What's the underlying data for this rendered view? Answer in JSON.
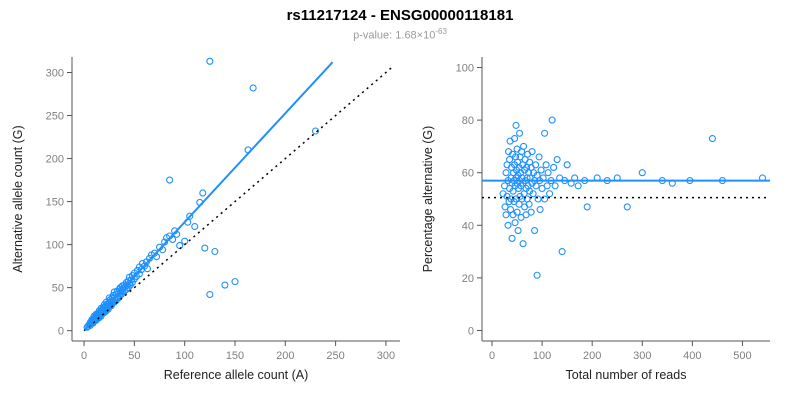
{
  "header": {
    "title": "rs11217124 - ENSG00000118181",
    "p_label": "p-value: 1.68×10",
    "p_exponent": "-63"
  },
  "colors": {
    "point": "#1E90FF",
    "fit_line": "#1E90FF",
    "reference_line": "#000000",
    "axis": "#555555",
    "tick_label": "#808080",
    "axis_label": "#222222",
    "subtitle": "#9a9a9a"
  },
  "chart_data": [
    {
      "type": "scatter",
      "xlabel": "Reference allele count (A)",
      "ylabel": "Alternative allele count (G)",
      "xlim": [
        -12,
        314
      ],
      "ylim": [
        -12,
        318
      ],
      "xticks": [
        0,
        50,
        100,
        150,
        200,
        250,
        300
      ],
      "yticks": [
        0,
        50,
        100,
        150,
        200,
        250,
        300
      ],
      "grid": false,
      "legend": "none",
      "point_color": "#1E90FF",
      "lines": [
        {
          "name": "identity-line",
          "style": "dotted",
          "color": "#000000",
          "width": 1.5,
          "x1": 0,
          "y1": 0,
          "x2": 308,
          "y2": 308
        },
        {
          "name": "fit-line",
          "style": "solid",
          "color": "#1E90FF",
          "width": 2,
          "x1": 1,
          "y1": 1,
          "x2": 247,
          "y2": 312
        }
      ],
      "points": [
        [
          3,
          4
        ],
        [
          4,
          5
        ],
        [
          5,
          7
        ],
        [
          6,
          6
        ],
        [
          6,
          9
        ],
        [
          7,
          8
        ],
        [
          7,
          11
        ],
        [
          8,
          10
        ],
        [
          8,
          13
        ],
        [
          9,
          9
        ],
        [
          9,
          12
        ],
        [
          10,
          11
        ],
        [
          10,
          14
        ],
        [
          10,
          17
        ],
        [
          11,
          13
        ],
        [
          11,
          16
        ],
        [
          12,
          12
        ],
        [
          12,
          15
        ],
        [
          12,
          19
        ],
        [
          13,
          14
        ],
        [
          13,
          18
        ],
        [
          14,
          16
        ],
        [
          14,
          20
        ],
        [
          15,
          15
        ],
        [
          15,
          19
        ],
        [
          15,
          23
        ],
        [
          16,
          18
        ],
        [
          16,
          22
        ],
        [
          17,
          17
        ],
        [
          17,
          21
        ],
        [
          17,
          26
        ],
        [
          18,
          20
        ],
        [
          18,
          24
        ],
        [
          19,
          22
        ],
        [
          19,
          27
        ],
        [
          20,
          21
        ],
        [
          20,
          25
        ],
        [
          20,
          30
        ],
        [
          21,
          24
        ],
        [
          21,
          28
        ],
        [
          22,
          23
        ],
        [
          22,
          27
        ],
        [
          22,
          33
        ],
        [
          23,
          26
        ],
        [
          23,
          31
        ],
        [
          24,
          25
        ],
        [
          24,
          30
        ],
        [
          25,
          28
        ],
        [
          25,
          33
        ],
        [
          25,
          38
        ],
        [
          26,
          30
        ],
        [
          26,
          36
        ],
        [
          27,
          29
        ],
        [
          27,
          34
        ],
        [
          28,
          32
        ],
        [
          28,
          38
        ],
        [
          29,
          34
        ],
        [
          29,
          41
        ],
        [
          30,
          33
        ],
        [
          30,
          38
        ],
        [
          30,
          45
        ],
        [
          31,
          36
        ],
        [
          32,
          35
        ],
        [
          32,
          42
        ],
        [
          33,
          39
        ],
        [
          33,
          46
        ],
        [
          34,
          38
        ],
        [
          34,
          44
        ],
        [
          35,
          41
        ],
        [
          35,
          48
        ],
        [
          36,
          43
        ],
        [
          36,
          50
        ],
        [
          37,
          42
        ],
        [
          37,
          47
        ],
        [
          38,
          45
        ],
        [
          38,
          52
        ],
        [
          39,
          49
        ],
        [
          40,
          46
        ],
        [
          40,
          53
        ],
        [
          41,
          51
        ],
        [
          42,
          48
        ],
        [
          42,
          56
        ],
        [
          43,
          53
        ],
        [
          44,
          50
        ],
        [
          44,
          58
        ],
        [
          45,
          55
        ],
        [
          45,
          62
        ],
        [
          46,
          53
        ],
        [
          47,
          59
        ],
        [
          48,
          56
        ],
        [
          48,
          64
        ],
        [
          50,
          60
        ],
        [
          50,
          67
        ],
        [
          52,
          63
        ],
        [
          53,
          70
        ],
        [
          55,
          66
        ],
        [
          55,
          74
        ],
        [
          57,
          71
        ],
        [
          58,
          78
        ],
        [
          60,
          75
        ],
        [
          62,
          80
        ],
        [
          63,
          72
        ],
        [
          65,
          84
        ],
        [
          67,
          88
        ],
        [
          70,
          90
        ],
        [
          72,
          86
        ],
        [
          75,
          97
        ],
        [
          78,
          94
        ],
        [
          80,
          103
        ],
        [
          82,
          108
        ],
        [
          85,
          110
        ],
        [
          85,
          175
        ],
        [
          88,
          106
        ],
        [
          90,
          116
        ],
        [
          92,
          112
        ],
        [
          95,
          99
        ],
        [
          100,
          104
        ],
        [
          103,
          126
        ],
        [
          105,
          133
        ],
        [
          110,
          121
        ],
        [
          115,
          149
        ],
        [
          118,
          160
        ],
        [
          120,
          96
        ],
        [
          125,
          42
        ],
        [
          125,
          313
        ],
        [
          130,
          92
        ],
        [
          140,
          53
        ],
        [
          150,
          57
        ],
        [
          163,
          210
        ],
        [
          168,
          282
        ],
        [
          230,
          232
        ]
      ]
    },
    {
      "type": "scatter",
      "xlabel": "Total number of reads",
      "ylabel": "Percentage alternative (G)",
      "xlim": [
        -20,
        555
      ],
      "ylim": [
        -4,
        104
      ],
      "xticks": [
        0,
        100,
        200,
        300,
        400,
        500
      ],
      "yticks": [
        0,
        20,
        40,
        60,
        80,
        100
      ],
      "grid": false,
      "legend": "none",
      "point_color": "#1E90FF",
      "lines": [
        {
          "name": "expected-50pct-line",
          "style": "dotted",
          "color": "#000000",
          "width": 1.5,
          "x1": -20,
          "y1": 50.5,
          "x2": 555,
          "y2": 50.5
        },
        {
          "name": "fit-line",
          "style": "solid",
          "color": "#1E90FF",
          "width": 2,
          "x1": -20,
          "y1": 57,
          "x2": 555,
          "y2": 57
        }
      ],
      "points": [
        [
          22,
          52
        ],
        [
          25,
          55
        ],
        [
          26,
          47
        ],
        [
          28,
          60
        ],
        [
          28,
          44
        ],
        [
          30,
          63
        ],
        [
          30,
          51
        ],
        [
          32,
          57
        ],
        [
          32,
          40
        ],
        [
          33,
          68
        ],
        [
          34,
          49
        ],
        [
          35,
          65
        ],
        [
          35,
          54
        ],
        [
          36,
          72
        ],
        [
          37,
          46
        ],
        [
          38,
          58
        ],
        [
          38,
          50
        ],
        [
          39,
          62
        ],
        [
          40,
          56
        ],
        [
          40,
          35
        ],
        [
          41,
          67
        ],
        [
          42,
          53
        ],
        [
          42,
          44
        ],
        [
          43,
          60
        ],
        [
          44,
          57
        ],
        [
          44,
          49
        ],
        [
          45,
          73
        ],
        [
          45,
          63
        ],
        [
          46,
          55
        ],
        [
          46,
          41
        ],
        [
          47,
          66
        ],
        [
          48,
          78
        ],
        [
          48,
          58
        ],
        [
          48,
          50
        ],
        [
          49,
          61
        ],
        [
          50,
          69
        ],
        [
          50,
          56
        ],
        [
          50,
          45
        ],
        [
          51,
          64
        ],
        [
          52,
          59
        ],
        [
          52,
          38
        ],
        [
          53,
          54
        ],
        [
          54,
          62
        ],
        [
          54,
          48
        ],
        [
          55,
          75
        ],
        [
          55,
          57
        ],
        [
          56,
          66
        ],
        [
          56,
          51
        ],
        [
          57,
          60
        ],
        [
          58,
          55
        ],
        [
          58,
          43
        ],
        [
          59,
          68
        ],
        [
          60,
          58
        ],
        [
          60,
          50
        ],
        [
          61,
          63
        ],
        [
          62,
          56
        ],
        [
          62,
          33
        ],
        [
          63,
          70
        ],
        [
          64,
          52
        ],
        [
          65,
          61
        ],
        [
          65,
          47
        ],
        [
          66,
          65
        ],
        [
          67,
          57
        ],
        [
          68,
          54
        ],
        [
          68,
          44
        ],
        [
          69,
          62
        ],
        [
          70,
          58
        ],
        [
          70,
          50
        ],
        [
          71,
          67
        ],
        [
          72,
          55
        ],
        [
          73,
          60
        ],
        [
          74,
          48
        ],
        [
          75,
          64
        ],
        [
          75,
          53
        ],
        [
          76,
          58
        ],
        [
          78,
          62
        ],
        [
          78,
          45
        ],
        [
          80,
          56
        ],
        [
          80,
          68
        ],
        [
          82,
          52
        ],
        [
          83,
          60
        ],
        [
          85,
          57
        ],
        [
          85,
          38
        ],
        [
          87,
          63
        ],
        [
          88,
          55
        ],
        [
          90,
          21
        ],
        [
          90,
          59
        ],
        [
          92,
          50
        ],
        [
          94,
          66
        ],
        [
          95,
          57
        ],
        [
          96,
          46
        ],
        [
          98,
          61
        ],
        [
          100,
          54
        ],
        [
          102,
          58
        ],
        [
          105,
          75
        ],
        [
          105,
          50
        ],
        [
          108,
          63
        ],
        [
          110,
          55
        ],
        [
          112,
          60
        ],
        [
          115,
          52
        ],
        [
          118,
          57
        ],
        [
          120,
          80
        ],
        [
          123,
          62
        ],
        [
          126,
          55
        ],
        [
          130,
          65
        ],
        [
          135,
          58
        ],
        [
          140,
          30
        ],
        [
          145,
          57
        ],
        [
          150,
          63
        ],
        [
          158,
          56
        ],
        [
          165,
          58
        ],
        [
          172,
          55
        ],
        [
          185,
          57
        ],
        [
          190,
          47
        ],
        [
          210,
          58
        ],
        [
          230,
          57
        ],
        [
          250,
          58
        ],
        [
          270,
          47
        ],
        [
          300,
          60
        ],
        [
          340,
          57
        ],
        [
          360,
          56
        ],
        [
          395,
          57
        ],
        [
          440,
          73
        ],
        [
          460,
          57
        ],
        [
          540,
          58
        ]
      ]
    }
  ]
}
